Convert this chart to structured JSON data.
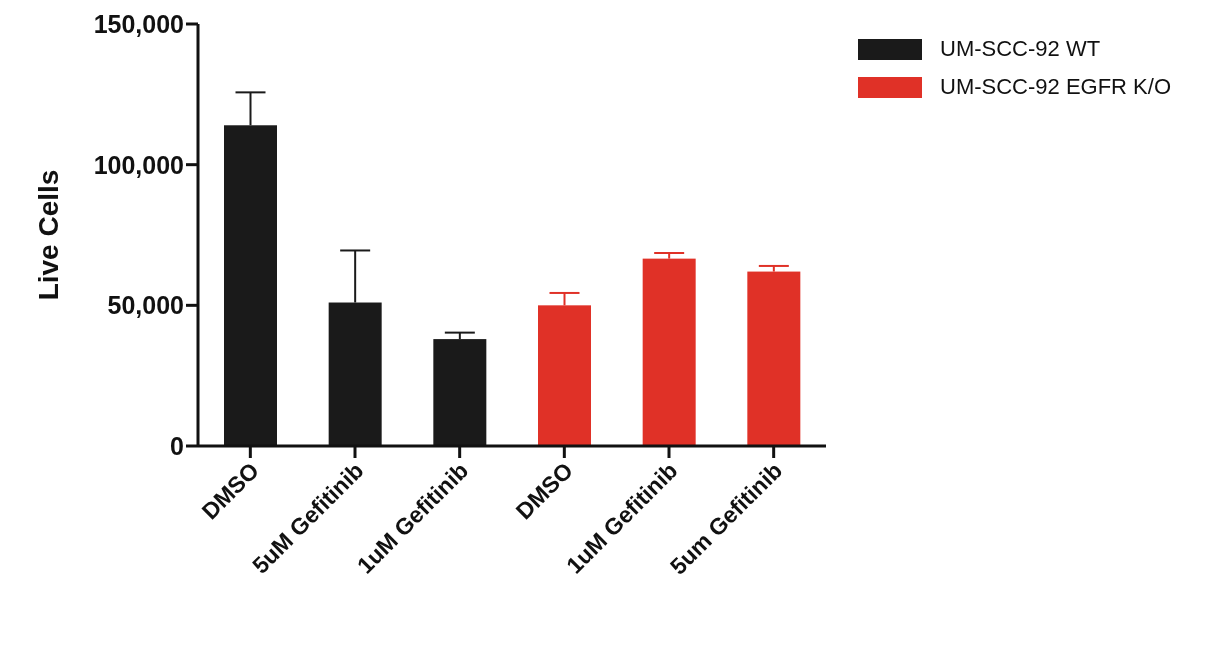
{
  "chart_data": {
    "type": "bar",
    "ylabel": "Live Cells",
    "categories": [
      "DMSO",
      "5uM Gefitinib",
      "1uM Gefitinib",
      "DMSO",
      "1uM Gefitinib",
      "5um Gefitinib"
    ],
    "series": [
      {
        "name": "UM-SCC-92 WT",
        "color": "#1a1a1a",
        "values": [
          114000,
          51000,
          38000,
          null,
          null,
          null
        ],
        "errors": [
          [
            114000,
            125700
          ],
          [
            51000,
            69500
          ],
          [
            38000,
            40300
          ],
          null,
          null,
          null
        ]
      },
      {
        "name": "UM-SCC-92 EGFR K/O",
        "color": "#e03127",
        "values": [
          null,
          null,
          null,
          50000,
          66600,
          62000
        ],
        "errors": [
          null,
          null,
          null,
          [
            50000,
            54400
          ],
          [
            66600,
            68600
          ],
          [
            62000,
            64000
          ]
        ]
      }
    ],
    "ylim": [
      0,
      150000
    ],
    "yticks": [
      {
        "value": 0,
        "label": "0"
      },
      {
        "value": 50000,
        "label": "50,000"
      },
      {
        "value": 100000,
        "label": "100,000"
      },
      {
        "value": 150000,
        "label": "150,000"
      }
    ],
    "grid": false,
    "legend": "top right"
  }
}
